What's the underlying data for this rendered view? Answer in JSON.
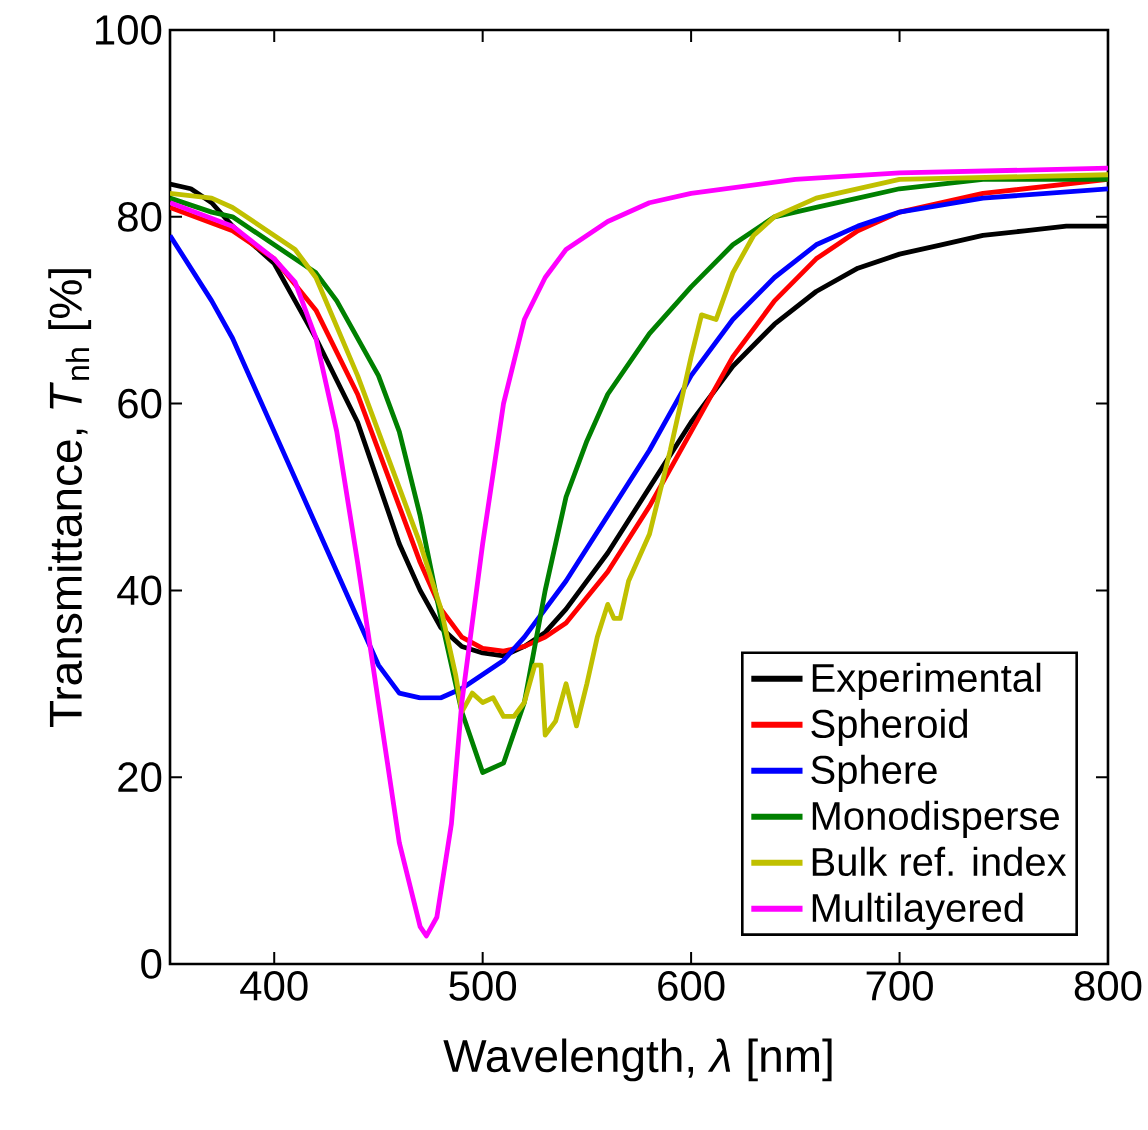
{
  "chart_data": {
    "type": "line",
    "xlabel": "Wavelength,  *λ* [nm]",
    "ylabel": "Transmittance, *T*$_{nh}$ [%]",
    "xlim": [
      350,
      800
    ],
    "xticks": [
      400,
      500,
      600,
      700,
      800
    ],
    "ylim": [
      0,
      100
    ],
    "yticks": [
      0,
      20,
      40,
      60,
      80,
      100
    ],
    "grid": false,
    "legend": "bottom right",
    "marker": "none",
    "line_style": "solid",
    "series": [
      {
        "name": "Experimental",
        "color": "#000000",
        "x": [
          350,
          360,
          370,
          380,
          400,
          410,
          420,
          440,
          460,
          470,
          480,
          490,
          500,
          510,
          520,
          530,
          540,
          560,
          580,
          600,
          620,
          640,
          660,
          680,
          700,
          720,
          740,
          760,
          780,
          790,
          800
        ],
        "values": [
          83.5,
          83,
          81.5,
          79,
          75,
          71,
          67,
          58,
          45,
          40,
          36,
          34,
          33.3,
          33,
          34,
          35.5,
          38,
          44,
          51,
          58,
          64,
          68.5,
          72,
          74.5,
          76,
          77,
          78,
          78.5,
          79,
          79,
          79
        ]
      },
      {
        "name": "Spheroid",
        "color": "#ff0000",
        "x": [
          350,
          380,
          400,
          420,
          440,
          460,
          470,
          480,
          490,
          500,
          510,
          520,
          530,
          540,
          560,
          580,
          600,
          620,
          640,
          660,
          680,
          700,
          740,
          800
        ],
        "values": [
          81,
          78.5,
          75.5,
          70,
          61,
          49,
          43,
          38,
          35,
          33.8,
          33.5,
          34,
          35,
          36.5,
          42,
          49,
          57,
          65,
          71,
          75.5,
          78.5,
          80.5,
          82.5,
          84
        ]
      },
      {
        "name": "Sphere",
        "color": "#0000ff",
        "x": [
          350,
          360,
          370,
          380,
          400,
          420,
          440,
          450,
          460,
          470,
          480,
          490,
          500,
          510,
          520,
          540,
          560,
          580,
          600,
          620,
          640,
          660,
          680,
          700,
          740,
          800
        ],
        "values": [
          78,
          74.5,
          71,
          67,
          57,
          47,
          37,
          32,
          29,
          28.5,
          28.5,
          29.5,
          31,
          32.5,
          35,
          41,
          48,
          55,
          63,
          69,
          73.5,
          77,
          79,
          80.5,
          82,
          83
        ]
      },
      {
        "name": "Monodisperse",
        "color": "#008000",
        "x": [
          350,
          370,
          380,
          400,
          420,
          430,
          440,
          450,
          460,
          470,
          480,
          490,
          500,
          510,
          520,
          530,
          540,
          550,
          560,
          580,
          600,
          620,
          640,
          660,
          680,
          700,
          740,
          800
        ],
        "values": [
          82,
          80.5,
          80,
          77,
          74,
          71,
          67,
          63,
          57,
          48,
          37,
          27,
          20.5,
          21.5,
          28,
          40,
          50,
          56,
          61,
          67.5,
          72.5,
          77,
          80,
          81,
          82,
          83,
          84,
          84
        ]
      },
      {
        "name": "Bulk ref. index",
        "color": "#c0c000",
        "x": [
          350,
          370,
          380,
          400,
          410,
          420,
          440,
          460,
          470,
          480,
          487,
          490,
          495,
          500,
          505,
          510,
          515,
          520,
          525,
          528,
          530,
          535,
          540,
          545,
          550,
          555,
          560,
          563,
          566,
          570,
          580,
          590,
          600,
          605,
          612,
          620,
          630,
          640,
          660,
          700,
          800
        ],
        "values": [
          82.5,
          82,
          81,
          78,
          76.5,
          73.5,
          63,
          51,
          45,
          38,
          31,
          27,
          29,
          28,
          28.5,
          26.5,
          26.5,
          28,
          32,
          32,
          24.5,
          26,
          30,
          25.5,
          30,
          35,
          38.5,
          37,
          37,
          41,
          46,
          55,
          65,
          69.5,
          69,
          74,
          78,
          80,
          82,
          84,
          84.5
        ]
      },
      {
        "name": "Multilayered",
        "color": "#ff00ff",
        "x": [
          350,
          380,
          400,
          410,
          420,
          430,
          440,
          450,
          460,
          470,
          473,
          478,
          485,
          490,
          500,
          510,
          520,
          530,
          540,
          560,
          580,
          600,
          650,
          700,
          800
        ],
        "values": [
          81.5,
          79,
          75.5,
          73,
          67,
          57,
          43,
          28,
          13,
          4,
          3,
          5,
          15,
          28,
          45,
          60,
          69,
          73.5,
          76.5,
          79.5,
          81.5,
          82.5,
          84,
          84.7,
          85.2
        ]
      }
    ]
  }
}
